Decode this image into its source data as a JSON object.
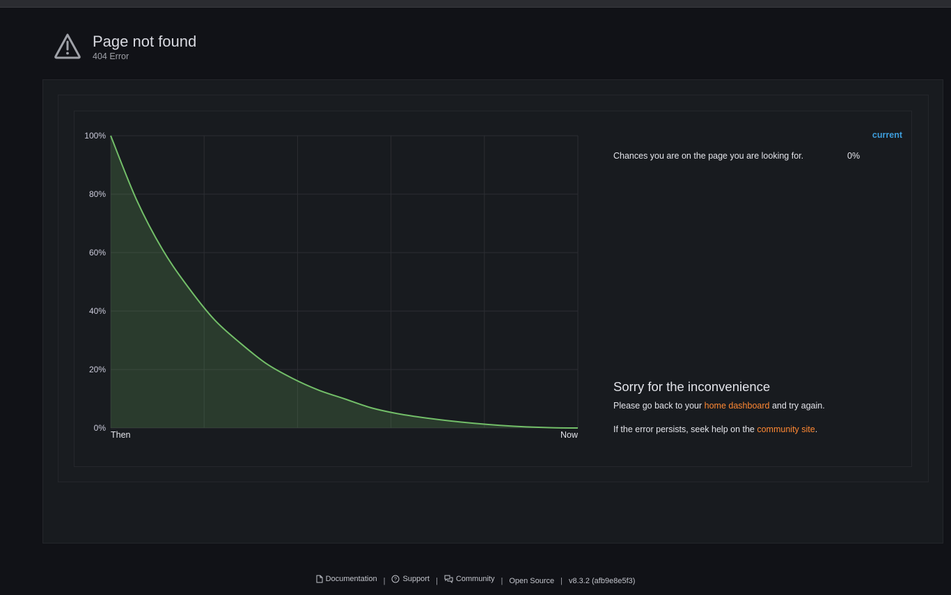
{
  "header": {
    "icon": "warning-triangle-icon",
    "title": "Page not found",
    "subtitle": "404 Error"
  },
  "chart_data": {
    "type": "area",
    "title": "",
    "xlabel": "",
    "ylabel": "",
    "x_labels": [
      "Then",
      "Now"
    ],
    "y_ticks": [
      "0%",
      "20%",
      "40%",
      "60%",
      "80%",
      "100%"
    ],
    "ylim": [
      0,
      100
    ],
    "grid": true,
    "series": [
      {
        "name": "Chances you are on the page you are looking for.",
        "color": "#73bf69",
        "values": [
          100,
          78,
          61,
          48,
          37,
          29,
          22,
          17,
          13,
          10,
          7,
          5,
          3.6,
          2.5,
          1.6,
          0.9,
          0.4,
          0.1,
          0
        ]
      }
    ]
  },
  "legend": {
    "column_header": "current",
    "rows": [
      {
        "name": "Chances you are on the page you are looking for.",
        "value": "0%"
      }
    ]
  },
  "message": {
    "title": "Sorry for the inconvenience",
    "line1_before": "Please go back to your ",
    "line1_link": "home dashboard",
    "line1_after": " and try again.",
    "line2_before": "If the error persists, seek help on the ",
    "line2_link": "community site",
    "line2_after": "."
  },
  "footer": {
    "items": [
      {
        "label": "Documentation",
        "icon": "document-icon"
      },
      {
        "label": "Support",
        "icon": "question-circle-icon"
      },
      {
        "label": "Community",
        "icon": "comments-icon"
      },
      {
        "label": "Open Source",
        "icon": ""
      },
      {
        "label": "v8.3.2 (afb9e8e5f3)",
        "icon": ""
      }
    ]
  },
  "colors": {
    "background": "#111217",
    "panel": "#181b1f",
    "series": "#73bf69",
    "link": "#ff8833",
    "legend_header": "#3d9ddb"
  }
}
